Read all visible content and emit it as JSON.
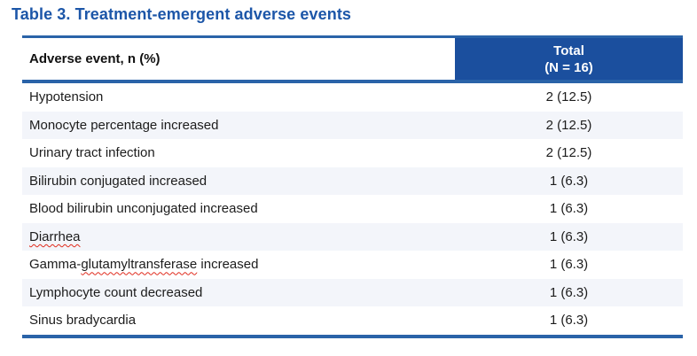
{
  "title": "Table 3. Treatment-emergent adverse events",
  "table": {
    "col1_header": "Adverse event, n (%)",
    "col2_header": {
      "line1": "Total",
      "line2": "(N = 16)"
    },
    "rows": [
      {
        "segments": [
          {
            "text": "Hypotension",
            "squiggle": false
          }
        ],
        "value": "2 (12.5)"
      },
      {
        "segments": [
          {
            "text": "Monocyte percentage increased",
            "squiggle": false
          }
        ],
        "value": "2 (12.5)"
      },
      {
        "segments": [
          {
            "text": "Urinary tract infection",
            "squiggle": false
          }
        ],
        "value": "2 (12.5)"
      },
      {
        "segments": [
          {
            "text": "Bilirubin conjugated increased",
            "squiggle": false
          }
        ],
        "value": "1 (6.3)"
      },
      {
        "segments": [
          {
            "text": "Blood bilirubin unconjugated increased",
            "squiggle": false
          }
        ],
        "value": "1 (6.3)"
      },
      {
        "segments": [
          {
            "text": "Diarrhea",
            "squiggle": true
          }
        ],
        "value": "1 (6.3)"
      },
      {
        "segments": [
          {
            "text": "Gamma-",
            "squiggle": false
          },
          {
            "text": "glutamyltransferase",
            "squiggle": true
          },
          {
            "text": " increased",
            "squiggle": false
          }
        ],
        "value": "1 (6.3)"
      },
      {
        "segments": [
          {
            "text": "Lymphocyte count decreased",
            "squiggle": false
          }
        ],
        "value": "1 (6.3)"
      },
      {
        "segments": [
          {
            "text": "Sinus bradycardia",
            "squiggle": false
          }
        ],
        "value": "1 (6.3)"
      }
    ]
  },
  "colors": {
    "title_blue": "#1c56a8",
    "line_blue": "#2a63a8",
    "cell_blue": "#1b4f9e",
    "stripe": "#f3f5fa",
    "squiggle_red": "#e02b1d"
  }
}
